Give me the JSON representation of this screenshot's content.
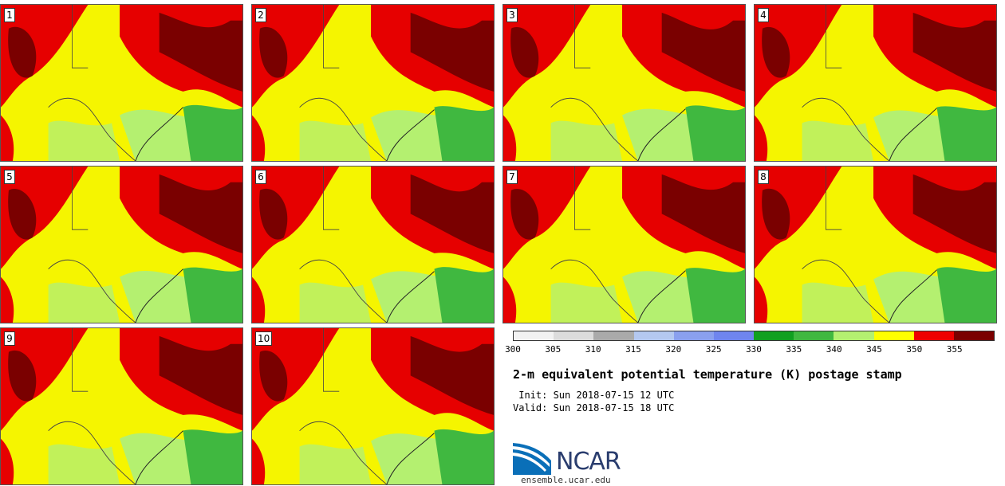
{
  "panels": [
    {
      "number": "1"
    },
    {
      "number": "2"
    },
    {
      "number": "3"
    },
    {
      "number": "4"
    },
    {
      "number": "5"
    },
    {
      "number": "6"
    },
    {
      "number": "7"
    },
    {
      "number": "8"
    },
    {
      "number": "9"
    },
    {
      "number": "10"
    }
  ],
  "colorbar": {
    "ticks": [
      "300",
      "305",
      "310",
      "315",
      "320",
      "325",
      "330",
      "335",
      "340",
      "345",
      "350",
      "355"
    ],
    "colors": [
      "#f2f2f2",
      "#dcdcdc",
      "#aaaaaa",
      "#b4c8f0",
      "#8aa0ee",
      "#6f85ee",
      "#10a020",
      "#40b840",
      "#b4f070",
      "#ffff00",
      "#ee0000",
      "#7a0000"
    ]
  },
  "title": "2-m equivalent potential temperature (K) postage stamp",
  "init": " Init: Sun 2018-07-15 12 UTC",
  "valid": "Valid: Sun 2018-07-15 18 UTC",
  "logo": {
    "text": "NCAR",
    "site": "ensemble.ucar.edu"
  },
  "map_colors": {
    "yellow": "#f5f500",
    "light_green": "#b4f070",
    "green": "#40b840",
    "red": "#e60000",
    "dark_red": "#7a0000",
    "border": "#444444"
  }
}
